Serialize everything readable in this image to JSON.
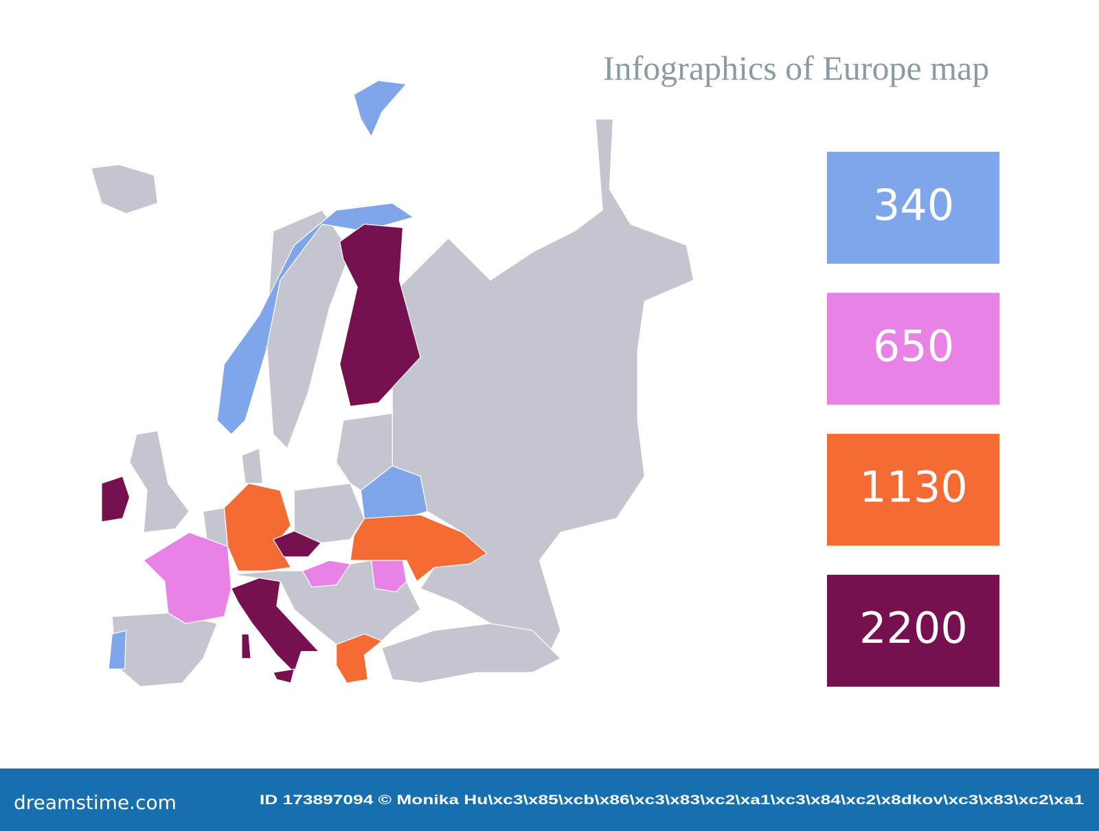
{
  "title": "Infographics of Europe map",
  "legend": [
    {
      "value": 340,
      "color": "#7fa6ea"
    },
    {
      "value": 650,
      "color": "#e882e6"
    },
    {
      "value": 1130,
      "color": "#f46b33"
    },
    {
      "value": 2200,
      "color": "#76104e"
    }
  ],
  "land_color": "#c5c5cf",
  "footer": {
    "logo": "dreamstime.com",
    "credit": "ID 173897094 © Monika Hu\\xc3\\x85\\xcb\\x86\\xc3\\x83\\xc2\\xa1\\xc3\\x84\\xc2\\x8dkov\\xc3\\x83\\xc2\\xa1",
    "color": "#166fae"
  }
}
